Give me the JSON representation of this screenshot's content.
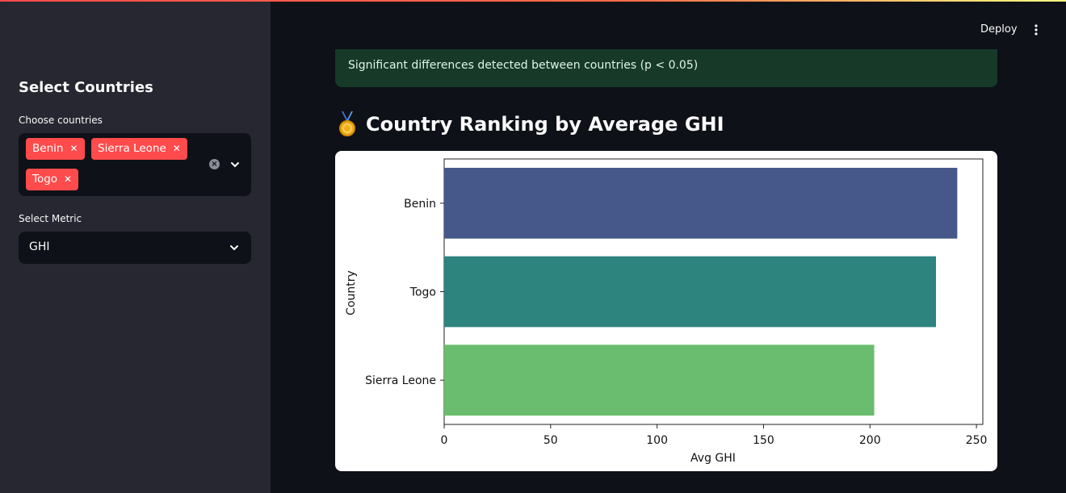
{
  "header": {
    "deploy_label": "Deploy",
    "menu_icon": "kebab-menu-icon",
    "accent_gradient": [
      "#ff4b4b",
      "#fffd80"
    ]
  },
  "sidebar": {
    "title": "Select Countries",
    "countries_label": "Choose countries",
    "selected_countries": [
      "Benin",
      "Sierra Leone",
      "Togo"
    ],
    "metric_label": "Select Metric",
    "metric_value": "GHI",
    "tag_color": "#ff4b4b"
  },
  "main": {
    "alert_text": "Significant differences detected between countries (p < 0.05)",
    "heading_icon": "medal-icon",
    "heading": "Country Ranking by Average GHI"
  },
  "chart_data": {
    "type": "bar",
    "orientation": "horizontal",
    "categories": [
      "Benin",
      "Togo",
      "Sierra Leone"
    ],
    "values": [
      241,
      231,
      202
    ],
    "colors": [
      "#46578a",
      "#2d837e",
      "#6abd6e"
    ],
    "xlabel": "Avg GHI",
    "ylabel": "Country",
    "xlim": [
      0,
      253
    ],
    "xticks": [
      0,
      50,
      100,
      150,
      200,
      250
    ],
    "title": ""
  }
}
